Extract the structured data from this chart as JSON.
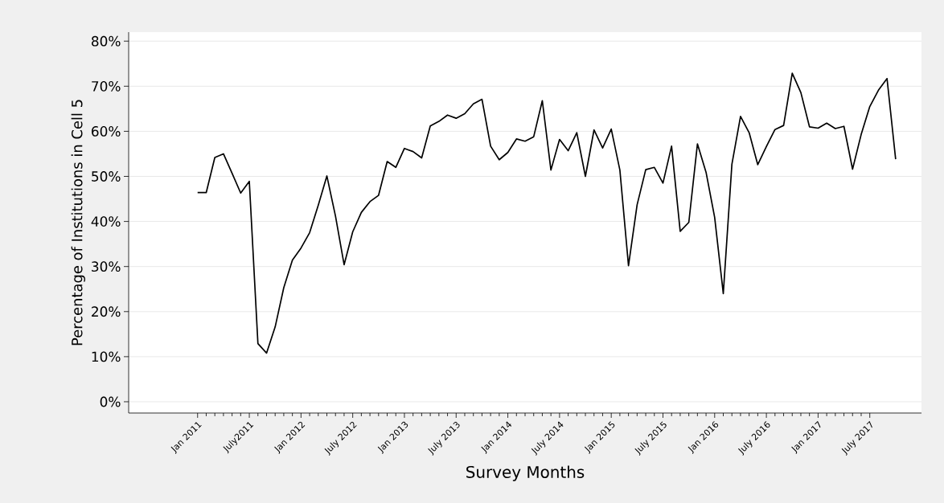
{
  "chart_data": {
    "type": "line",
    "xlabel": "Survey Months",
    "ylabel": "Percentage of Institutions in Cell 5",
    "xlim": [
      "2010-05",
      "2018-01"
    ],
    "xticks": [
      {
        "value": "2011-01",
        "label": "Jan 2011"
      },
      {
        "value": "2011-07",
        "label": "July2011"
      },
      {
        "value": "2012-01",
        "label": "Jan 2012"
      },
      {
        "value": "2012-07",
        "label": "July 2012"
      },
      {
        "value": "2013-01",
        "label": "Jan 2013"
      },
      {
        "value": "2013-07",
        "label": "July 2013"
      },
      {
        "value": "2014-01",
        "label": "Jan 2014"
      },
      {
        "value": "2014-07",
        "label": "July 2014"
      },
      {
        "value": "2015-01",
        "label": "Jan 2015"
      },
      {
        "value": "2015-07",
        "label": "July 2015"
      },
      {
        "value": "2016-01",
        "label": "Jan 2016"
      },
      {
        "value": "2016-07",
        "label": "July 2016"
      },
      {
        "value": "2017-01",
        "label": "Jan 2017"
      },
      {
        "value": "2017-07",
        "label": "July 2017"
      }
    ],
    "ylim": [
      -2.5,
      82
    ],
    "yticks": [
      {
        "value": 0,
        "label": "0%"
      },
      {
        "value": 10,
        "label": "10%"
      },
      {
        "value": 20,
        "label": "20%"
      },
      {
        "value": 30,
        "label": "30%"
      },
      {
        "value": 40,
        "label": "40%"
      },
      {
        "value": 50,
        "label": "50%"
      },
      {
        "value": 60,
        "label": "60%"
      },
      {
        "value": 70,
        "label": "70%"
      },
      {
        "value": 80,
        "label": "80%"
      }
    ],
    "grid": "y",
    "x": [
      "2011-01",
      "2011-02",
      "2011-03",
      "2011-04",
      "2011-05",
      "2011-06",
      "2011-07",
      "2011-08",
      "2011-09",
      "2011-10",
      "2011-11",
      "2011-12",
      "2012-01",
      "2012-02",
      "2012-03",
      "2012-04",
      "2012-05",
      "2012-06",
      "2012-07",
      "2012-08",
      "2012-09",
      "2012-10",
      "2012-11",
      "2012-12",
      "2013-01",
      "2013-02",
      "2013-03",
      "2013-04",
      "2013-05",
      "2013-06",
      "2013-07",
      "2013-08",
      "2013-09",
      "2013-10",
      "2013-11",
      "2013-12",
      "2014-01",
      "2014-02",
      "2014-03",
      "2014-04",
      "2014-05",
      "2014-06",
      "2014-07",
      "2014-08",
      "2014-09",
      "2014-10",
      "2014-11",
      "2014-12",
      "2015-01",
      "2015-02",
      "2015-03",
      "2015-04",
      "2015-05",
      "2015-06",
      "2015-07",
      "2015-08",
      "2015-09",
      "2015-10",
      "2015-11",
      "2015-12",
      "2016-01",
      "2016-02",
      "2016-03",
      "2016-04",
      "2016-05",
      "2016-06",
      "2016-07",
      "2016-08",
      "2016-09",
      "2016-10",
      "2016-11",
      "2016-12",
      "2017-01",
      "2017-02",
      "2017-03",
      "2017-04",
      "2017-05",
      "2017-06",
      "2017-07",
      "2017-08",
      "2017-09",
      "2017-10"
    ],
    "series": [
      {
        "color": "#000000",
        "values": [
          46.4,
          46.4,
          54.2,
          55.0,
          50.7,
          46.3,
          48.9,
          12.9,
          10.8,
          16.6,
          25.3,
          31.4,
          34.1,
          37.5,
          43.6,
          50.1,
          41.2,
          30.4,
          37.7,
          42.0,
          44.4,
          45.8,
          53.3,
          52.0,
          56.2,
          55.5,
          54.1,
          61.2,
          62.2,
          63.6,
          62.9,
          63.9,
          66.1,
          67.1,
          56.7,
          53.7,
          55.3,
          58.3,
          57.8,
          58.8,
          66.8,
          51.4,
          58.2,
          55.7,
          59.7,
          50.0,
          60.3,
          56.3,
          60.5,
          51.4,
          30.2,
          43.7,
          51.5,
          52.0,
          48.5,
          56.7,
          37.8,
          39.8,
          57.2,
          50.9,
          40.9,
          24.0,
          52.7,
          63.3,
          59.7,
          52.6,
          56.6,
          60.4,
          61.3,
          72.9,
          68.6,
          61.0,
          60.7,
          61.8,
          60.6,
          61.1,
          51.6,
          59.3,
          65.5,
          69.1,
          71.7,
          53.8
        ]
      }
    ]
  }
}
